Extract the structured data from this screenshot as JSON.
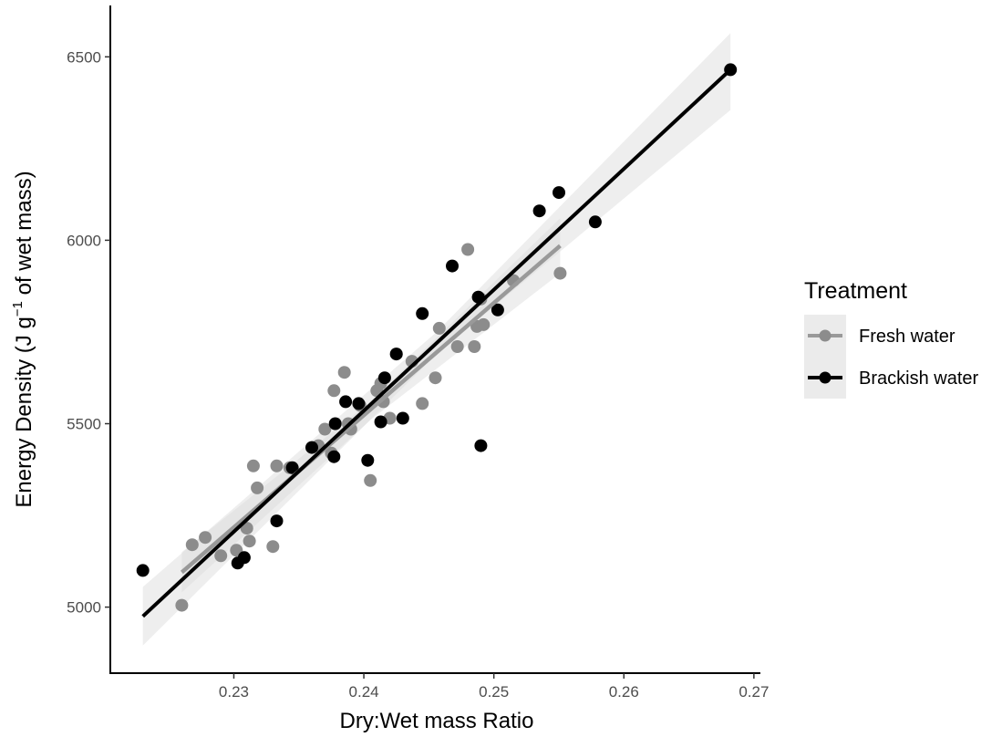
{
  "chart_data": {
    "type": "scatter",
    "title": "",
    "xlabel": "Dry:Wet mass Ratio",
    "ylabel": {
      "prefix": "Energy Density (J g",
      "superscript": "−1",
      "suffix": " of wet mass)"
    },
    "xlim": [
      0.2205,
      0.2705
    ],
    "ylim": [
      4820,
      6640
    ],
    "x_ticks": [
      0.23,
      0.24,
      0.25,
      0.26,
      0.27
    ],
    "x_tick_labels": [
      "0.23",
      "0.24",
      "0.25",
      "0.26",
      "0.27"
    ],
    "y_ticks": [
      5000,
      5500,
      6000,
      6500
    ],
    "y_tick_labels": [
      "5000",
      "5500",
      "6000",
      "6500"
    ],
    "grid": false,
    "legend": {
      "title": "Treatment",
      "placement": "right"
    },
    "series": [
      {
        "name": "Fresh water",
        "color": "#8c8c8c",
        "line_color": "#999999",
        "fit": {
          "x_start": 0.226,
          "y_start": 5095,
          "x_end": 0.2551,
          "y_end": 5985
        },
        "band": [
          {
            "x": 0.226,
            "lo": 5040,
            "hi": 5150
          },
          {
            "x": 0.2405,
            "lo": 5510,
            "hi": 5560
          },
          {
            "x": 0.2551,
            "lo": 5910,
            "hi": 6060
          }
        ],
        "points": [
          {
            "x": 0.226,
            "y": 5005
          },
          {
            "x": 0.2268,
            "y": 5170
          },
          {
            "x": 0.2278,
            "y": 5190
          },
          {
            "x": 0.229,
            "y": 5140
          },
          {
            "x": 0.2302,
            "y": 5155
          },
          {
            "x": 0.2312,
            "y": 5180
          },
          {
            "x": 0.231,
            "y": 5215
          },
          {
            "x": 0.2315,
            "y": 5385
          },
          {
            "x": 0.2318,
            "y": 5325
          },
          {
            "x": 0.233,
            "y": 5165
          },
          {
            "x": 0.2333,
            "y": 5385
          },
          {
            "x": 0.2343,
            "y": 5380
          },
          {
            "x": 0.2365,
            "y": 5440
          },
          {
            "x": 0.237,
            "y": 5485
          },
          {
            "x": 0.2375,
            "y": 5420
          },
          {
            "x": 0.2377,
            "y": 5590
          },
          {
            "x": 0.2385,
            "y": 5640
          },
          {
            "x": 0.2388,
            "y": 5500
          },
          {
            "x": 0.239,
            "y": 5485
          },
          {
            "x": 0.2397,
            "y": 5550
          },
          {
            "x": 0.2405,
            "y": 5345
          },
          {
            "x": 0.241,
            "y": 5590
          },
          {
            "x": 0.2413,
            "y": 5610
          },
          {
            "x": 0.2415,
            "y": 5560
          },
          {
            "x": 0.242,
            "y": 5515
          },
          {
            "x": 0.2425,
            "y": 5690
          },
          {
            "x": 0.2437,
            "y": 5670
          },
          {
            "x": 0.2445,
            "y": 5555
          },
          {
            "x": 0.2455,
            "y": 5625
          },
          {
            "x": 0.2458,
            "y": 5760
          },
          {
            "x": 0.2472,
            "y": 5710
          },
          {
            "x": 0.248,
            "y": 5975
          },
          {
            "x": 0.2485,
            "y": 5710
          },
          {
            "x": 0.2487,
            "y": 5765
          },
          {
            "x": 0.249,
            "y": 5840
          },
          {
            "x": 0.2492,
            "y": 5770
          },
          {
            "x": 0.2515,
            "y": 5890
          },
          {
            "x": 0.2551,
            "y": 5910
          }
        ]
      },
      {
        "name": "Brackish water",
        "color": "#000000",
        "line_color": "#000000",
        "fit": {
          "x_start": 0.223,
          "y_start": 4975,
          "x_end": 0.2682,
          "y_end": 6465
        },
        "band": [
          {
            "x": 0.223,
            "lo": 4895,
            "hi": 5055
          },
          {
            "x": 0.2456,
            "lo": 5690,
            "hi": 5750
          },
          {
            "x": 0.2682,
            "lo": 6355,
            "hi": 6565
          }
        ],
        "points": [
          {
            "x": 0.223,
            "y": 5100
          },
          {
            "x": 0.2303,
            "y": 5120
          },
          {
            "x": 0.2308,
            "y": 5135
          },
          {
            "x": 0.2333,
            "y": 5235
          },
          {
            "x": 0.2345,
            "y": 5380
          },
          {
            "x": 0.236,
            "y": 5435
          },
          {
            "x": 0.2377,
            "y": 5410
          },
          {
            "x": 0.2378,
            "y": 5500
          },
          {
            "x": 0.2386,
            "y": 5560
          },
          {
            "x": 0.2396,
            "y": 5555
          },
          {
            "x": 0.2403,
            "y": 5400
          },
          {
            "x": 0.2413,
            "y": 5505
          },
          {
            "x": 0.2416,
            "y": 5625
          },
          {
            "x": 0.2425,
            "y": 5690
          },
          {
            "x": 0.243,
            "y": 5515
          },
          {
            "x": 0.2445,
            "y": 5800
          },
          {
            "x": 0.2468,
            "y": 5930
          },
          {
            "x": 0.2488,
            "y": 5845
          },
          {
            "x": 0.249,
            "y": 5440
          },
          {
            "x": 0.2503,
            "y": 5810
          },
          {
            "x": 0.2535,
            "y": 6080
          },
          {
            "x": 0.255,
            "y": 6130
          },
          {
            "x": 0.2578,
            "y": 6050
          },
          {
            "x": 0.2682,
            "y": 6465
          }
        ]
      }
    ]
  }
}
